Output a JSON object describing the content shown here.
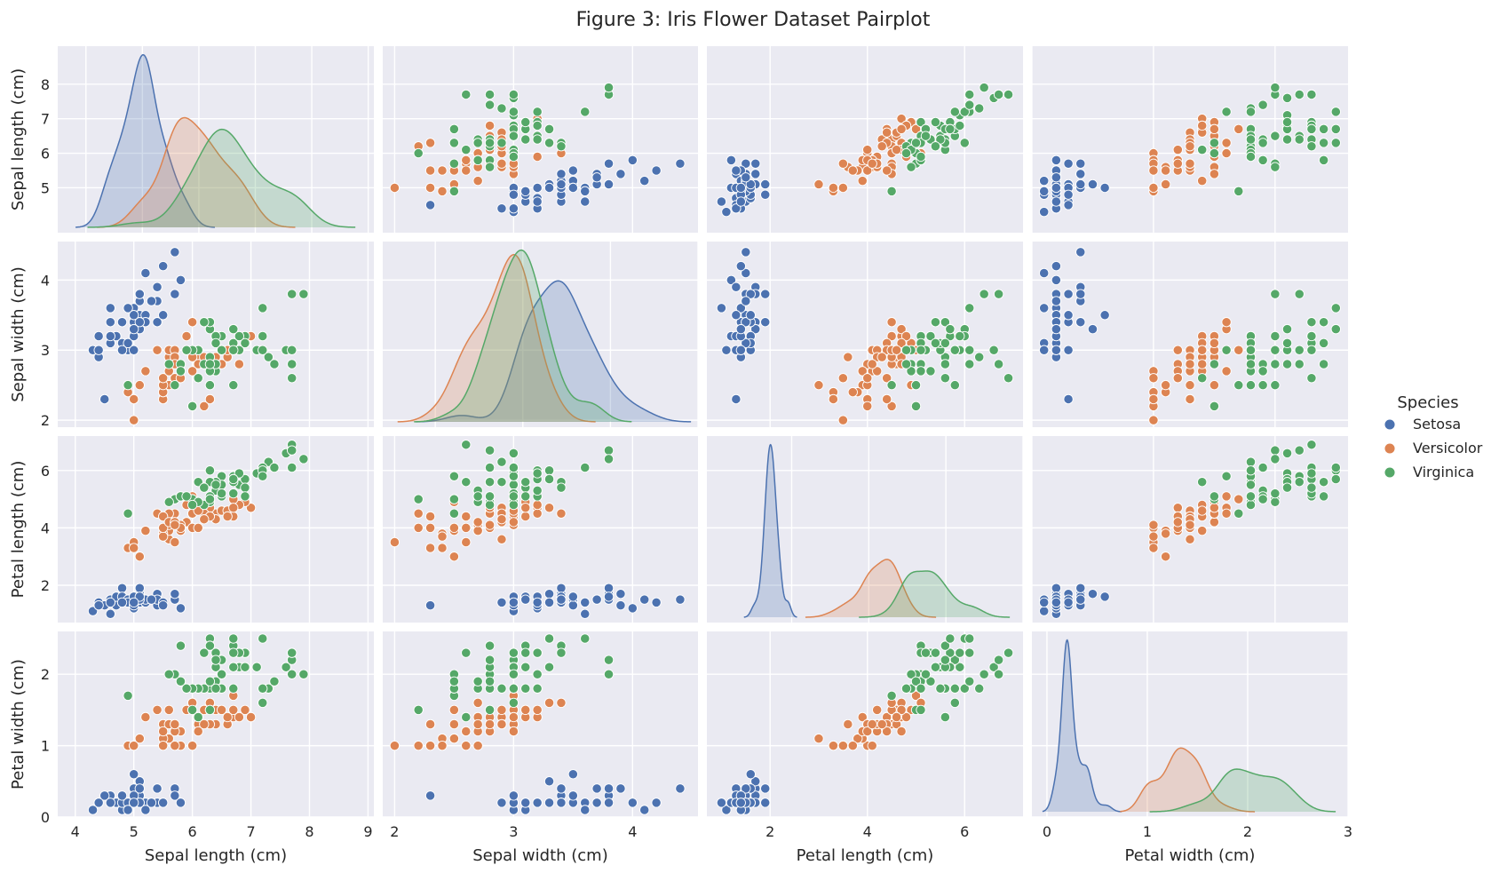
{
  "chart_data": {
    "type": "scatter",
    "kind": "pairplot",
    "title": "Figure 3: Iris Flower Dataset Pairplot",
    "variables": [
      {
        "key": "sl",
        "label": "Sepal length (cm)",
        "lim": [
          3.7,
          9.1
        ],
        "ticks": [
          4,
          5,
          6,
          7,
          8,
          9
        ],
        "yticks": [
          5,
          6,
          7,
          8
        ]
      },
      {
        "key": "sw",
        "label": "Sepal width (cm)",
        "lim": [
          1.9,
          4.55
        ],
        "ticks": [
          2,
          3,
          4,
          5
        ],
        "yticks": [
          2,
          3,
          4
        ]
      },
      {
        "key": "pl",
        "label": "Petal length (cm)",
        "lim": [
          0.7,
          7.2
        ],
        "ticks": [
          2,
          4,
          6,
          8
        ],
        "yticks": [
          2,
          4,
          6
        ]
      },
      {
        "key": "pw",
        "label": "Petal width (cm)",
        "lim": [
          0,
          2.6
        ],
        "ticks": [
          0,
          1,
          2,
          3
        ],
        "yticks": [
          0,
          1,
          2
        ]
      }
    ],
    "diag_xlim": [
      [
        3.5,
        9.1
      ],
      [
        1.4,
        5.0
      ],
      [
        -0.2,
        8.0
      ],
      [
        -0.15,
        3.0
      ]
    ],
    "grid": true,
    "legend": {
      "title": "Species",
      "placement": "right",
      "entries": [
        {
          "name": "Setosa",
          "color": "#4c72b0"
        },
        {
          "name": "Versicolor",
          "color": "#dd8452"
        },
        {
          "name": "Virginica",
          "color": "#55a868"
        }
      ]
    },
    "series": [
      {
        "name": "Setosa",
        "color": "#4c72b0",
        "points": [
          [
            5.1,
            3.5,
            1.4,
            0.2
          ],
          [
            4.9,
            3.0,
            1.4,
            0.2
          ],
          [
            4.7,
            3.2,
            1.3,
            0.2
          ],
          [
            4.6,
            3.1,
            1.5,
            0.2
          ],
          [
            5.0,
            3.6,
            1.4,
            0.2
          ],
          [
            5.4,
            3.9,
            1.7,
            0.4
          ],
          [
            4.6,
            3.4,
            1.4,
            0.3
          ],
          [
            5.0,
            3.4,
            1.5,
            0.2
          ],
          [
            4.4,
            2.9,
            1.4,
            0.2
          ],
          [
            4.9,
            3.1,
            1.5,
            0.1
          ],
          [
            5.4,
            3.7,
            1.5,
            0.2
          ],
          [
            4.8,
            3.4,
            1.6,
            0.2
          ],
          [
            4.8,
            3.0,
            1.4,
            0.1
          ],
          [
            4.3,
            3.0,
            1.1,
            0.1
          ],
          [
            5.8,
            4.0,
            1.2,
            0.2
          ],
          [
            5.7,
            4.4,
            1.5,
            0.4
          ],
          [
            5.4,
            3.9,
            1.3,
            0.4
          ],
          [
            5.1,
            3.5,
            1.4,
            0.3
          ],
          [
            5.7,
            3.8,
            1.7,
            0.3
          ],
          [
            5.1,
            3.8,
            1.5,
            0.3
          ],
          [
            5.4,
            3.4,
            1.7,
            0.2
          ],
          [
            5.1,
            3.7,
            1.5,
            0.4
          ],
          [
            4.6,
            3.6,
            1.0,
            0.2
          ],
          [
            5.1,
            3.3,
            1.7,
            0.5
          ],
          [
            4.8,
            3.4,
            1.9,
            0.2
          ],
          [
            5.0,
            3.0,
            1.6,
            0.2
          ],
          [
            5.0,
            3.4,
            1.6,
            0.4
          ],
          [
            5.2,
            3.5,
            1.5,
            0.2
          ],
          [
            5.2,
            3.4,
            1.4,
            0.2
          ],
          [
            4.7,
            3.2,
            1.6,
            0.2
          ],
          [
            4.8,
            3.1,
            1.6,
            0.2
          ],
          [
            5.4,
            3.4,
            1.5,
            0.4
          ],
          [
            5.2,
            4.1,
            1.5,
            0.1
          ],
          [
            5.5,
            4.2,
            1.4,
            0.2
          ],
          [
            4.9,
            3.1,
            1.5,
            0.2
          ],
          [
            5.0,
            3.2,
            1.2,
            0.2
          ],
          [
            5.5,
            3.5,
            1.3,
            0.2
          ],
          [
            4.9,
            3.6,
            1.4,
            0.1
          ],
          [
            4.4,
            3.0,
            1.3,
            0.2
          ],
          [
            5.1,
            3.4,
            1.5,
            0.2
          ],
          [
            5.0,
            3.5,
            1.3,
            0.3
          ],
          [
            4.5,
            2.3,
            1.3,
            0.3
          ],
          [
            4.4,
            3.2,
            1.3,
            0.2
          ],
          [
            5.0,
            3.5,
            1.6,
            0.6
          ],
          [
            5.1,
            3.8,
            1.9,
            0.4
          ],
          [
            4.8,
            3.0,
            1.4,
            0.3
          ],
          [
            5.1,
            3.8,
            1.6,
            0.2
          ],
          [
            4.6,
            3.2,
            1.4,
            0.2
          ],
          [
            5.3,
            3.7,
            1.5,
            0.2
          ],
          [
            5.0,
            3.3,
            1.4,
            0.2
          ]
        ]
      },
      {
        "name": "Versicolor",
        "color": "#dd8452",
        "points": [
          [
            7.0,
            3.2,
            4.7,
            1.4
          ],
          [
            6.4,
            3.2,
            4.5,
            1.5
          ],
          [
            6.9,
            3.1,
            4.9,
            1.5
          ],
          [
            5.5,
            2.3,
            4.0,
            1.3
          ],
          [
            6.5,
            2.8,
            4.6,
            1.5
          ],
          [
            5.7,
            2.8,
            4.5,
            1.3
          ],
          [
            6.3,
            3.3,
            4.7,
            1.6
          ],
          [
            4.9,
            2.4,
            3.3,
            1.0
          ],
          [
            6.6,
            2.9,
            4.6,
            1.3
          ],
          [
            5.2,
            2.7,
            3.9,
            1.4
          ],
          [
            5.0,
            2.0,
            3.5,
            1.0
          ],
          [
            5.9,
            3.0,
            4.2,
            1.5
          ],
          [
            6.0,
            2.2,
            4.0,
            1.0
          ],
          [
            6.1,
            2.9,
            4.7,
            1.4
          ],
          [
            5.6,
            2.9,
            3.6,
            1.3
          ],
          [
            6.7,
            3.1,
            4.4,
            1.4
          ],
          [
            5.6,
            3.0,
            4.5,
            1.5
          ],
          [
            5.8,
            2.7,
            4.1,
            1.0
          ],
          [
            6.2,
            2.2,
            4.5,
            1.5
          ],
          [
            5.6,
            2.5,
            3.9,
            1.1
          ],
          [
            5.9,
            3.2,
            4.8,
            1.8
          ],
          [
            6.1,
            2.8,
            4.0,
            1.3
          ],
          [
            6.3,
            2.5,
            4.9,
            1.5
          ],
          [
            6.1,
            2.8,
            4.7,
            1.2
          ],
          [
            6.4,
            2.9,
            4.3,
            1.3
          ],
          [
            6.6,
            3.0,
            4.4,
            1.4
          ],
          [
            6.8,
            2.8,
            4.8,
            1.4
          ],
          [
            6.7,
            3.0,
            5.0,
            1.7
          ],
          [
            6.0,
            2.9,
            4.5,
            1.5
          ],
          [
            5.7,
            2.6,
            3.5,
            1.0
          ],
          [
            5.5,
            2.4,
            3.8,
            1.1
          ],
          [
            5.5,
            2.4,
            3.7,
            1.0
          ],
          [
            5.8,
            2.7,
            3.9,
            1.2
          ],
          [
            6.0,
            2.7,
            5.1,
            1.6
          ],
          [
            5.4,
            3.0,
            4.5,
            1.5
          ],
          [
            6.0,
            3.4,
            4.5,
            1.6
          ],
          [
            6.7,
            3.1,
            4.7,
            1.5
          ],
          [
            6.3,
            2.3,
            4.4,
            1.3
          ],
          [
            5.6,
            3.0,
            4.1,
            1.3
          ],
          [
            5.5,
            2.5,
            4.0,
            1.3
          ],
          [
            5.5,
            2.6,
            4.4,
            1.2
          ],
          [
            6.1,
            3.0,
            4.6,
            1.4
          ],
          [
            5.8,
            2.6,
            4.0,
            1.2
          ],
          [
            5.0,
            2.3,
            3.3,
            1.0
          ],
          [
            5.6,
            2.7,
            4.2,
            1.3
          ],
          [
            5.7,
            3.0,
            4.2,
            1.2
          ],
          [
            5.7,
            2.9,
            4.2,
            1.3
          ],
          [
            6.2,
            2.9,
            4.3,
            1.3
          ],
          [
            5.1,
            2.5,
            3.0,
            1.1
          ],
          [
            5.7,
            2.8,
            4.1,
            1.3
          ]
        ]
      },
      {
        "name": "Virginica",
        "color": "#55a868",
        "points": [
          [
            6.3,
            3.3,
            6.0,
            2.5
          ],
          [
            5.8,
            2.7,
            5.1,
            1.9
          ],
          [
            7.1,
            3.0,
            5.9,
            2.1
          ],
          [
            6.3,
            2.9,
            5.6,
            1.8
          ],
          [
            6.5,
            3.0,
            5.8,
            2.2
          ],
          [
            7.6,
            3.0,
            6.6,
            2.1
          ],
          [
            4.9,
            2.5,
            4.5,
            1.7
          ],
          [
            7.3,
            2.9,
            6.3,
            1.8
          ],
          [
            6.7,
            2.5,
            5.8,
            1.8
          ],
          [
            7.2,
            3.6,
            6.1,
            2.5
          ],
          [
            6.5,
            3.2,
            5.1,
            2.0
          ],
          [
            6.4,
            2.7,
            5.3,
            1.9
          ],
          [
            6.8,
            3.0,
            5.5,
            2.1
          ],
          [
            5.7,
            2.5,
            5.0,
            2.0
          ],
          [
            5.8,
            2.8,
            5.1,
            2.4
          ],
          [
            6.4,
            3.2,
            5.3,
            2.3
          ],
          [
            6.5,
            3.0,
            5.5,
            1.8
          ],
          [
            7.7,
            3.8,
            6.7,
            2.2
          ],
          [
            7.7,
            2.6,
            6.9,
            2.3
          ],
          [
            6.0,
            2.2,
            5.0,
            1.5
          ],
          [
            6.9,
            3.2,
            5.7,
            2.3
          ],
          [
            5.6,
            2.8,
            4.9,
            2.0
          ],
          [
            7.7,
            2.8,
            6.7,
            2.0
          ],
          [
            6.3,
            2.7,
            4.9,
            1.8
          ],
          [
            6.7,
            3.3,
            5.7,
            2.1
          ],
          [
            7.2,
            3.2,
            6.0,
            1.8
          ],
          [
            6.2,
            2.8,
            4.8,
            1.8
          ],
          [
            6.1,
            3.0,
            4.9,
            1.8
          ],
          [
            6.4,
            2.8,
            5.6,
            2.1
          ],
          [
            7.2,
            3.0,
            5.8,
            1.6
          ],
          [
            7.4,
            2.8,
            6.1,
            1.9
          ],
          [
            7.9,
            3.8,
            6.4,
            2.0
          ],
          [
            6.4,
            2.8,
            5.6,
            2.2
          ],
          [
            6.3,
            2.8,
            5.1,
            1.5
          ],
          [
            6.1,
            2.6,
            5.6,
            1.4
          ],
          [
            7.7,
            3.0,
            6.1,
            2.3
          ],
          [
            6.3,
            3.4,
            5.6,
            2.4
          ],
          [
            6.4,
            3.1,
            5.5,
            1.8
          ],
          [
            6.0,
            3.0,
            4.8,
            1.8
          ],
          [
            6.9,
            3.1,
            5.4,
            2.1
          ],
          [
            6.7,
            3.1,
            5.6,
            2.4
          ],
          [
            6.9,
            3.1,
            5.1,
            2.3
          ],
          [
            5.8,
            2.7,
            5.1,
            1.9
          ],
          [
            6.8,
            3.2,
            5.9,
            2.3
          ],
          [
            6.7,
            3.3,
            5.7,
            2.5
          ],
          [
            6.7,
            3.0,
            5.2,
            2.3
          ],
          [
            6.3,
            2.5,
            5.0,
            1.9
          ],
          [
            6.5,
            3.0,
            5.2,
            2.0
          ],
          [
            6.2,
            3.4,
            5.4,
            2.3
          ],
          [
            5.9,
            3.0,
            5.1,
            1.8
          ]
        ]
      }
    ]
  }
}
